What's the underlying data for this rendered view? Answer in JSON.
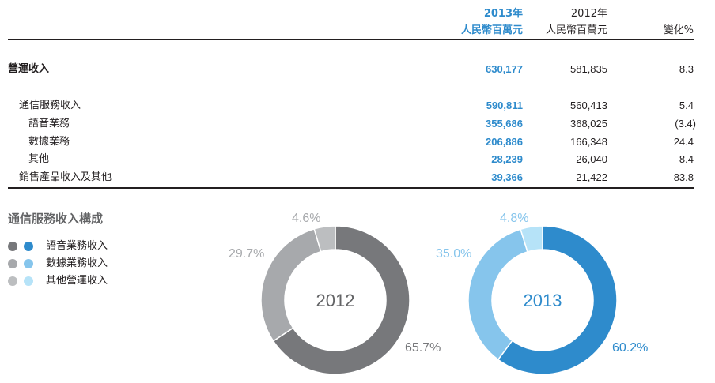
{
  "table": {
    "header": {
      "year_2013": "2013年",
      "unit_2013": "人民幣百萬元",
      "year_2012": "2012年",
      "unit_2012": "人民幣百萬元",
      "change": "變化%"
    },
    "rows": [
      {
        "label": "營運收入",
        "v2013": "630,177",
        "v2012": "581,835",
        "change": "8.3"
      },
      {
        "label": "通信服務收入",
        "v2013": "590,811",
        "v2012": "560,413",
        "change": "5.4"
      },
      {
        "label": "語音業務",
        "v2013": "355,686",
        "v2012": "368,025",
        "change": "(3.4)"
      },
      {
        "label": "數據業務",
        "v2013": "206,886",
        "v2012": "166,348",
        "change": "24.4"
      },
      {
        "label": "其他",
        "v2013": "28,239",
        "v2012": "26,040",
        "change": "8.4"
      },
      {
        "label": "銷售產品收入及其他",
        "v2013": "39,366",
        "v2012": "21,422",
        "change": "83.8"
      }
    ]
  },
  "section_title": "通信服務收入構成",
  "legend": [
    {
      "label": "語音業務收入",
      "color_2012": "#77787b",
      "color_2013": "#2e8bcc"
    },
    {
      "label": "數據業務收入",
      "color_2012": "#a7a9ac",
      "color_2013": "#86c5ec"
    },
    {
      "label": "其他營運收入",
      "color_2012": "#bcbec0",
      "color_2013": "#b6e3f8"
    }
  ],
  "chart_data": [
    {
      "type": "pie",
      "center_label": "2012",
      "categories": [
        "語音業務收入",
        "數據業務收入",
        "其他營運收入"
      ],
      "values": [
        65.7,
        29.7,
        4.6
      ],
      "value_labels": [
        "65.7%",
        "29.7%",
        "4.6%"
      ],
      "colors": [
        "#77787b",
        "#a7a9ac",
        "#bcbec0"
      ]
    },
    {
      "type": "pie",
      "center_label": "2013",
      "categories": [
        "語音業務收入",
        "數據業務收入",
        "其他營運收入"
      ],
      "values": [
        60.2,
        35.0,
        4.8
      ],
      "value_labels": [
        "60.2%",
        "35.0%",
        "4.8%"
      ],
      "colors": [
        "#2e8bcc",
        "#86c5ec",
        "#b6e3f8"
      ]
    }
  ]
}
